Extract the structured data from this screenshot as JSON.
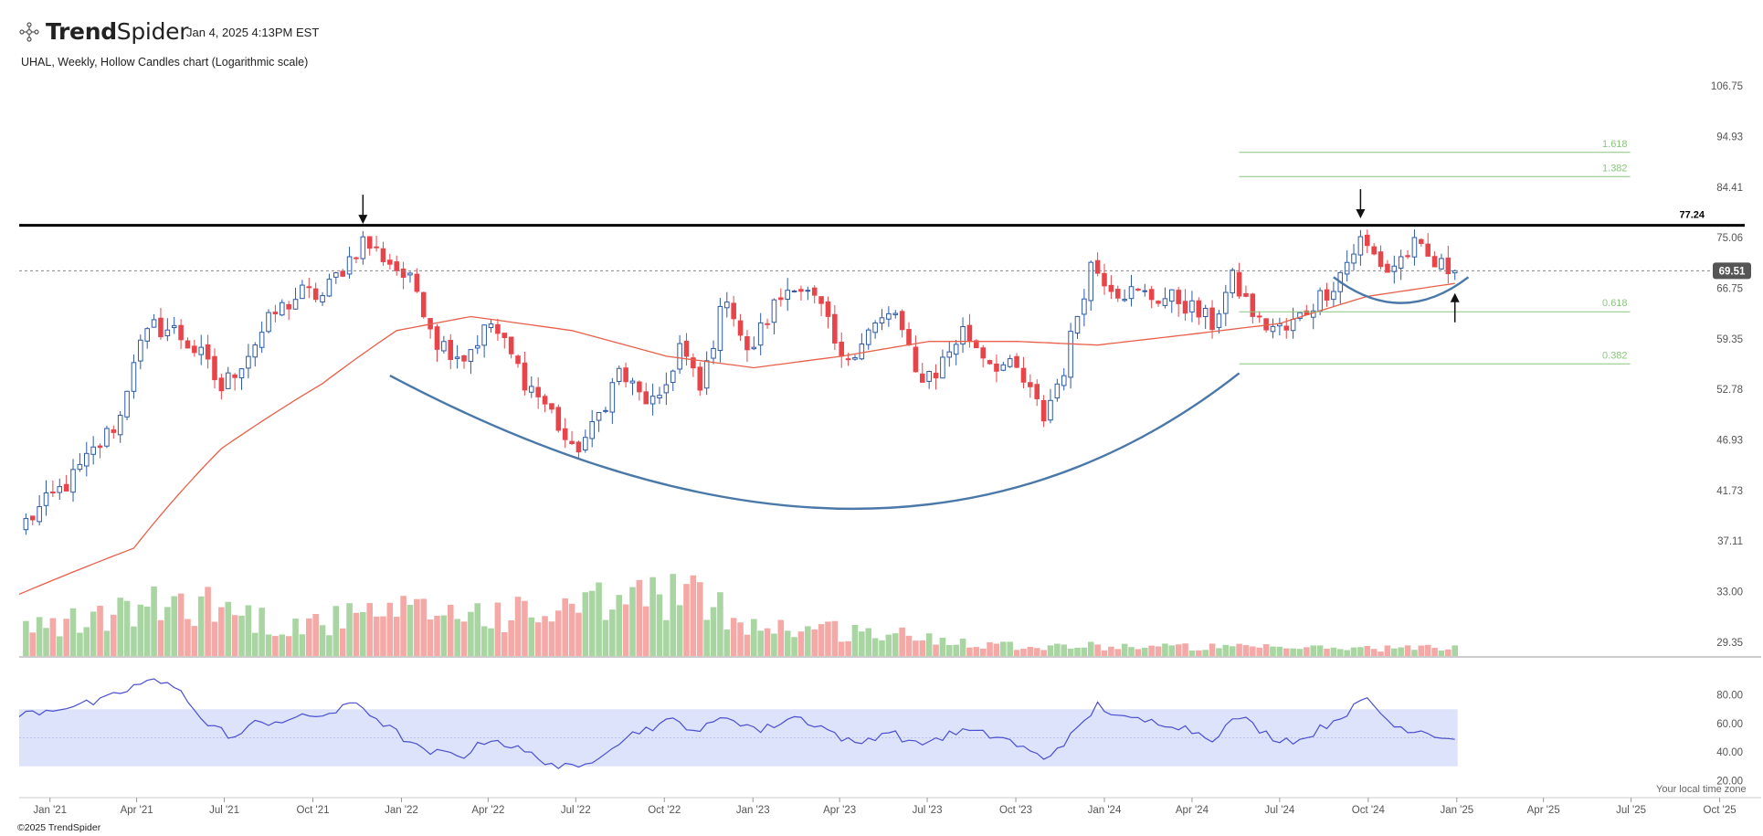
{
  "header": {
    "logo_name": "TrendSpider",
    "logo_bold": "Trend",
    "logo_light": "Spider",
    "timestamp": "Jan 4, 2025 4:13PM EST",
    "subtitle": "UHAL, Weekly, Hollow Candles chart (Logarithmic scale)"
  },
  "footer": {
    "copyright": "©2025 TrendSpider",
    "local_time_note": "Your local time zone"
  },
  "colors": {
    "up_candle": "#2d5aa8",
    "down_candle": "#e8454b",
    "up_volume": "#a8d5a2",
    "down_volume": "#f4a9a6",
    "moving_average": "#e8604a",
    "pattern_curve": "#4a78a8",
    "resistance": "#000000",
    "fib": "#8cc47e",
    "rsi_line": "#4a4fd0",
    "rsi_band": "#dde3fa",
    "price_tag": "#555555"
  },
  "chart_data": {
    "type": "candlestick",
    "symbol": "UHAL",
    "interval": "Weekly",
    "style": "Hollow Candles",
    "scale": "logarithmic",
    "x_range": [
      "2020-11-30",
      "2025-10-27"
    ],
    "x_ticks": [
      "Jan '21",
      "Apr '21",
      "Jul '21",
      "Oct '21",
      "Jan '22",
      "Apr '22",
      "Jul '22",
      "Oct '22",
      "Jan '23",
      "Apr '23",
      "Jul '23",
      "Oct '23",
      "Jan '24",
      "Apr '24",
      "Jul '24",
      "Oct '24",
      "Jan '25",
      "Apr '25",
      "Jul '25",
      "Oct '25"
    ],
    "y_ticks": [
      "106.75",
      "94.93",
      "84.41",
      "75.06",
      "66.75",
      "59.35",
      "52.78",
      "46.93",
      "41.73",
      "37.11",
      "33.00",
      "29.35"
    ],
    "price_range": [
      28.0,
      110.0
    ],
    "close_anchors": [
      [
        "2020-12-07",
        38.8
      ],
      [
        "2020-12-28",
        40.5
      ],
      [
        "2021-01-25",
        43.0
      ],
      [
        "2021-02-22",
        46.5
      ],
      [
        "2021-03-15",
        49.5
      ],
      [
        "2021-03-29",
        57.0
      ],
      [
        "2021-04-19",
        61.0
      ],
      [
        "2021-05-10",
        60.5
      ],
      [
        "2021-06-07",
        57.0
      ],
      [
        "2021-06-28",
        52.8
      ],
      [
        "2021-07-26",
        57.5
      ],
      [
        "2021-08-23",
        63.0
      ],
      [
        "2021-09-20",
        66.0
      ],
      [
        "2021-10-11",
        65.5
      ],
      [
        "2021-11-01",
        70.0
      ],
      [
        "2021-11-22",
        74.5
      ],
      [
        "2021-12-20",
        71.0
      ],
      [
        "2022-01-17",
        66.5
      ],
      [
        "2022-02-07",
        59.0
      ],
      [
        "2022-03-07",
        57.0
      ],
      [
        "2022-04-04",
        61.5
      ],
      [
        "2022-05-09",
        54.0
      ],
      [
        "2022-06-06",
        50.0
      ],
      [
        "2022-06-27",
        45.5
      ],
      [
        "2022-07-18",
        48.0
      ],
      [
        "2022-08-15",
        55.0
      ],
      [
        "2022-09-05",
        52.0
      ],
      [
        "2022-09-26",
        50.8
      ],
      [
        "2022-10-17",
        58.5
      ],
      [
        "2022-11-07",
        52.5
      ],
      [
        "2022-12-05",
        66.0
      ],
      [
        "2022-12-26",
        57.0
      ],
      [
        "2023-01-23",
        64.0
      ],
      [
        "2023-02-13",
        68.0
      ],
      [
        "2023-03-13",
        63.5
      ],
      [
        "2023-04-03",
        56.0
      ],
      [
        "2023-05-01",
        60.5
      ],
      [
        "2023-05-29",
        63.0
      ],
      [
        "2023-06-19",
        54.5
      ],
      [
        "2023-07-10",
        55.0
      ],
      [
        "2023-08-07",
        60.5
      ],
      [
        "2023-09-04",
        56.5
      ],
      [
        "2023-10-02",
        55.0
      ],
      [
        "2023-10-30",
        49.5
      ],
      [
        "2023-11-20",
        55.5
      ],
      [
        "2023-12-18",
        70.5
      ],
      [
        "2024-01-15",
        66.5
      ],
      [
        "2024-02-19",
        65.5
      ],
      [
        "2024-03-18",
        65.0
      ],
      [
        "2024-04-22",
        61.5
      ],
      [
        "2024-05-13",
        68.0
      ],
      [
        "2024-06-10",
        61.5
      ],
      [
        "2024-07-08",
        60.5
      ],
      [
        "2024-08-05",
        64.5
      ],
      [
        "2024-08-26",
        67.5
      ],
      [
        "2024-09-23",
        74.5
      ],
      [
        "2024-10-21",
        69.5
      ],
      [
        "2024-11-18",
        73.5
      ],
      [
        "2024-12-09",
        70.5
      ],
      [
        "2024-12-30",
        69.51
      ]
    ],
    "moving_average_anchors": [
      [
        "2020-11-30",
        32.8
      ],
      [
        "2021-03-29",
        36.5
      ],
      [
        "2021-06-28",
        46.0
      ],
      [
        "2021-10-11",
        53.5
      ],
      [
        "2021-12-27",
        60.5
      ],
      [
        "2022-03-14",
        62.5
      ],
      [
        "2022-06-27",
        60.5
      ],
      [
        "2022-10-03",
        57.0
      ],
      [
        "2023-01-02",
        55.5
      ],
      [
        "2023-04-03",
        57.0
      ],
      [
        "2023-07-03",
        59.0
      ],
      [
        "2023-10-02",
        59.0
      ],
      [
        "2023-12-25",
        58.5
      ],
      [
        "2024-04-01",
        60.0
      ],
      [
        "2024-07-01",
        61.5
      ],
      [
        "2024-09-30",
        65.5
      ],
      [
        "2024-12-30",
        67.5
      ]
    ],
    "volume_level_anchors": [
      [
        "2020-12-07",
        0.25
      ],
      [
        "2021-03-29",
        0.45
      ],
      [
        "2021-06-07",
        0.55
      ],
      [
        "2021-08-30",
        0.3
      ],
      [
        "2021-12-06",
        0.4
      ],
      [
        "2022-02-07",
        0.45
      ],
      [
        "2022-05-30",
        0.4
      ],
      [
        "2022-10-10",
        0.65
      ],
      [
        "2023-01-09",
        0.3
      ],
      [
        "2023-04-10",
        0.25
      ],
      [
        "2023-07-03",
        0.18
      ],
      [
        "2023-10-09",
        0.1
      ],
      [
        "2024-01-08",
        0.1
      ],
      [
        "2024-07-08",
        0.08
      ],
      [
        "2024-12-30",
        0.08
      ]
    ],
    "rsi_anchors": [
      [
        "2020-11-30",
        66
      ],
      [
        "2021-01-18",
        72
      ],
      [
        "2021-02-22",
        75
      ],
      [
        "2021-04-12",
        90
      ],
      [
        "2021-05-17",
        85
      ],
      [
        "2021-06-07",
        62
      ],
      [
        "2021-07-12",
        50
      ],
      [
        "2021-08-02",
        60
      ],
      [
        "2021-09-20",
        64
      ],
      [
        "2021-10-25",
        68
      ],
      [
        "2021-11-15",
        75
      ],
      [
        "2021-12-13",
        60
      ],
      [
        "2022-01-24",
        40
      ],
      [
        "2022-03-07",
        38
      ],
      [
        "2022-04-04",
        50
      ],
      [
        "2022-05-16",
        38
      ],
      [
        "2022-06-13",
        30
      ],
      [
        "2022-07-04",
        28
      ],
      [
        "2022-08-08",
        45
      ],
      [
        "2022-09-05",
        55
      ],
      [
        "2022-10-10",
        62
      ],
      [
        "2022-11-07",
        55
      ],
      [
        "2022-12-05",
        65
      ],
      [
        "2023-01-09",
        55
      ],
      [
        "2023-02-13",
        65
      ],
      [
        "2023-03-13",
        58
      ],
      [
        "2023-04-17",
        45
      ],
      [
        "2023-05-22",
        55
      ],
      [
        "2023-06-19",
        45
      ],
      [
        "2023-08-07",
        55
      ],
      [
        "2023-09-18",
        50
      ],
      [
        "2023-10-30",
        35
      ],
      [
        "2023-12-04",
        55
      ],
      [
        "2023-12-25",
        73
      ],
      [
        "2024-01-22",
        63
      ],
      [
        "2024-03-11",
        60
      ],
      [
        "2024-04-22",
        50
      ],
      [
        "2024-05-20",
        65
      ],
      [
        "2024-06-24",
        50
      ],
      [
        "2024-07-22",
        48
      ],
      [
        "2024-08-26",
        62
      ],
      [
        "2024-09-30",
        77
      ],
      [
        "2024-10-28",
        58
      ],
      [
        "2024-11-25",
        55
      ],
      [
        "2024-12-30",
        49
      ]
    ],
    "rsi_ticks": [
      "80.00",
      "60.00",
      "40.00",
      "20.00"
    ],
    "rsi_band": [
      30,
      70
    ],
    "resistance": {
      "value": 77.24,
      "label": "77.24"
    },
    "last_price": {
      "value": 69.51,
      "label": "69.51"
    },
    "fib_levels": [
      {
        "label": "1.618",
        "value": 91.5,
        "from": "2024-05-20",
        "to": "2025-06-30"
      },
      {
        "label": "1.382",
        "value": 86.5,
        "from": "2024-05-20",
        "to": "2025-06-30"
      },
      {
        "label": "0.618",
        "value": 63.2,
        "from": "2024-05-20",
        "to": "2025-06-30"
      },
      {
        "label": "0.382",
        "value": 56.0,
        "from": "2024-05-20",
        "to": "2025-06-30"
      }
    ],
    "cup": {
      "start": [
        "2021-12-20",
        54.5
      ],
      "bottom": [
        "2023-04-17",
        40.0
      ],
      "end": [
        "2024-05-20",
        54.8
      ]
    },
    "handle": {
      "start": [
        "2024-08-26",
        68.5
      ],
      "bottom": [
        "2024-11-04",
        64.5
      ],
      "end": [
        "2025-01-13",
        68.5
      ]
    },
    "arrows": [
      {
        "date": "2021-11-22",
        "value": 77.5,
        "direction": "down"
      },
      {
        "date": "2024-09-23",
        "value": 78.5,
        "direction": "down"
      },
      {
        "date": "2024-12-30",
        "value": 66.0,
        "direction": "up"
      }
    ]
  }
}
